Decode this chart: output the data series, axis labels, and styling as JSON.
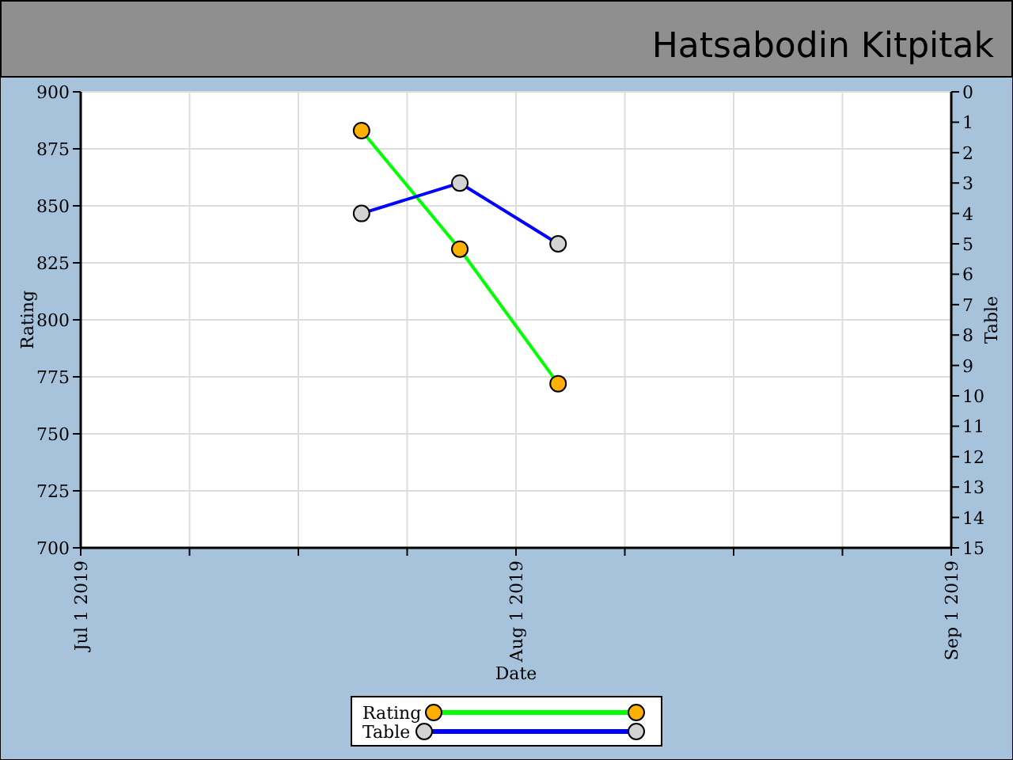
{
  "chart_data": {
    "type": "line",
    "title": "Hatsabodin Kitpitak",
    "xlabel": "Date",
    "ylabel": "Rating",
    "y2label": "Table",
    "x": [
      "2019-07-21",
      "2019-07-28",
      "2019-08-04"
    ],
    "series": [
      {
        "name": "Rating",
        "color": "#00ff00",
        "values": [
          883,
          831,
          772
        ]
      },
      {
        "name": "Table",
        "color": "#0000ff",
        "values": [
          4,
          3,
          5
        ],
        "axis": "y2"
      }
    ],
    "xlim": [
      "2019-07-01",
      "2019-09-01"
    ],
    "xticks": [
      {
        "value": "2019-07-01",
        "label": "Jul 1 2019"
      },
      {
        "value": "2019-07-08T18:00",
        "label": null
      },
      {
        "value": "2019-07-16T12:00",
        "label": null
      },
      {
        "value": "2019-07-24T06:00",
        "label": null
      },
      {
        "value": "2019-08-01",
        "label": "Aug 1 2019"
      },
      {
        "value": "2019-08-08T18:00",
        "label": null
      },
      {
        "value": "2019-08-16T12:00",
        "label": null
      },
      {
        "value": "2019-08-24T06:00",
        "label": null
      },
      {
        "value": "2019-09-01",
        "label": "Sep 1 2019"
      }
    ],
    "ylim": [
      700,
      900
    ],
    "yticks": [
      700,
      725,
      750,
      775,
      800,
      825,
      850,
      875,
      900
    ],
    "y2lim": [
      15,
      0
    ],
    "y2ticks": [
      0,
      1,
      2,
      3,
      4,
      5,
      6,
      7,
      8,
      9,
      10,
      11,
      12,
      13,
      14,
      15
    ],
    "grid": true,
    "legend": "bottom",
    "marker": "circle",
    "line_style": "solid"
  }
}
